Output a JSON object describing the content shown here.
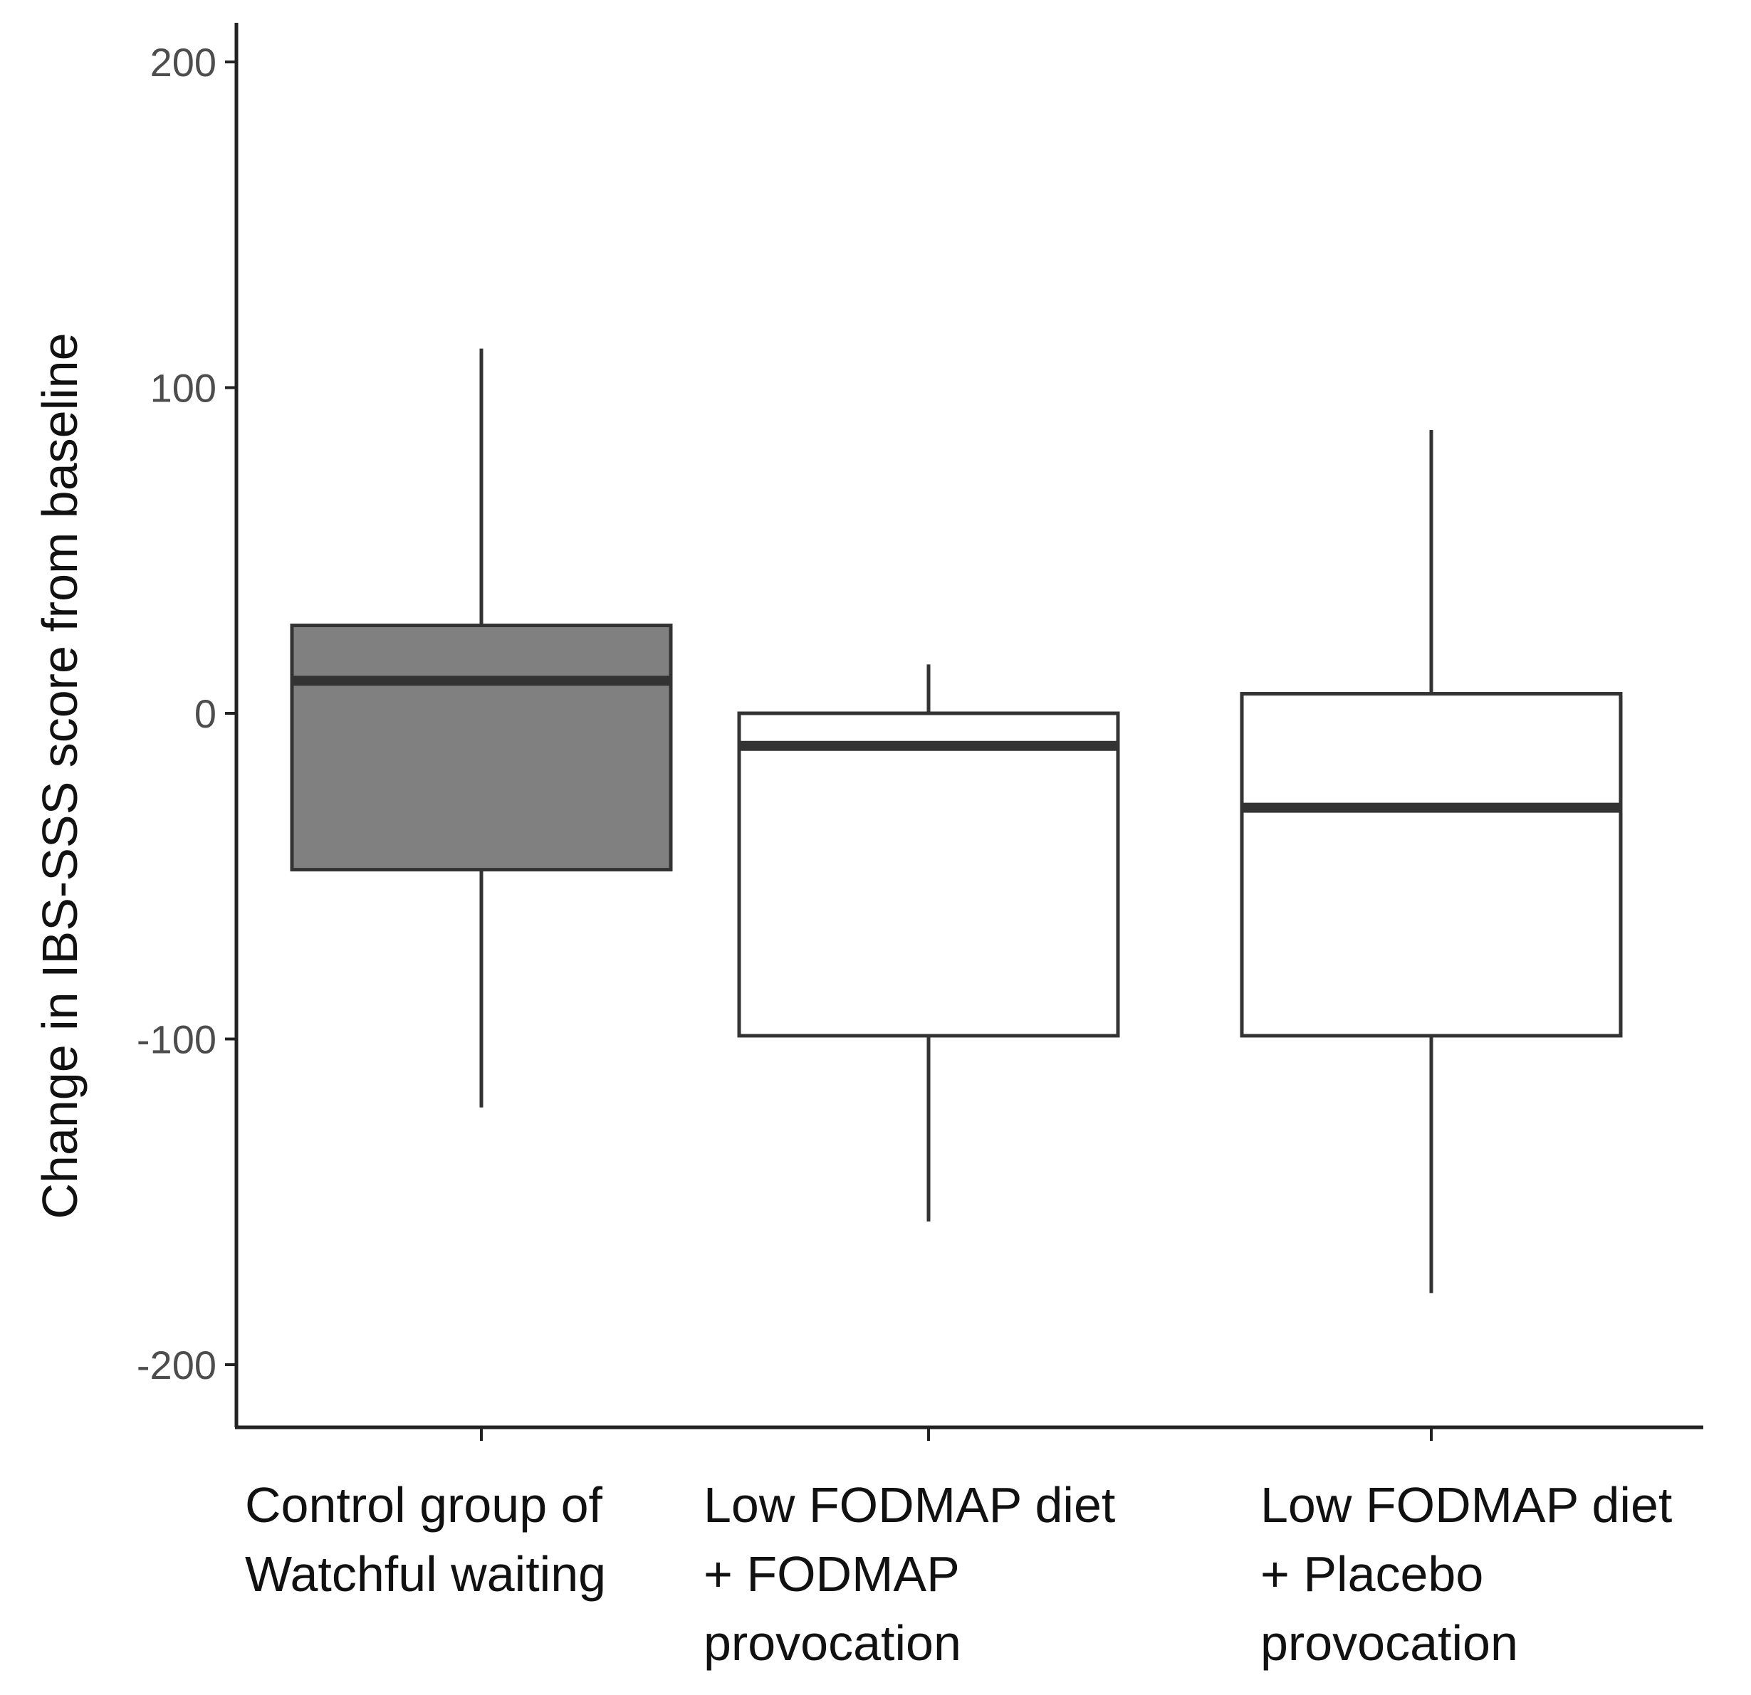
{
  "chart_data": {
    "type": "boxplot",
    "title": "",
    "xlabel": "",
    "ylabel": "Change in IBS-SSS score from baseline",
    "ylim": [
      -220,
      212
    ],
    "yticks": [
      200,
      100,
      0,
      -100,
      -200
    ],
    "ytick_labels": [
      "200",
      "100",
      "0",
      "-100",
      "-200"
    ],
    "grid": false,
    "legend": "none",
    "groups": [
      {
        "label_lines": [
          "Control group of",
          "Watchful waiting"
        ],
        "whisker_low": -121,
        "q1": -48,
        "median": 10,
        "q3": 27,
        "whisker_high": 112,
        "fill": "#808080"
      },
      {
        "label_lines": [
          "Low FODMAP diet",
          "+ FODMAP",
          "provocation"
        ],
        "whisker_low": -156,
        "q1": -99,
        "median": -10,
        "q3": 0,
        "whisker_high": 15,
        "fill": "#ffffff"
      },
      {
        "label_lines": [
          "Low FODMAP diet",
          "+ Placebo",
          "provocation"
        ],
        "whisker_low": -178,
        "q1": -99,
        "median": -29,
        "q3": 6,
        "whisker_high": 87,
        "fill": "#ffffff"
      }
    ],
    "colors": {
      "line": "#333333",
      "axis": "#222222"
    }
  }
}
